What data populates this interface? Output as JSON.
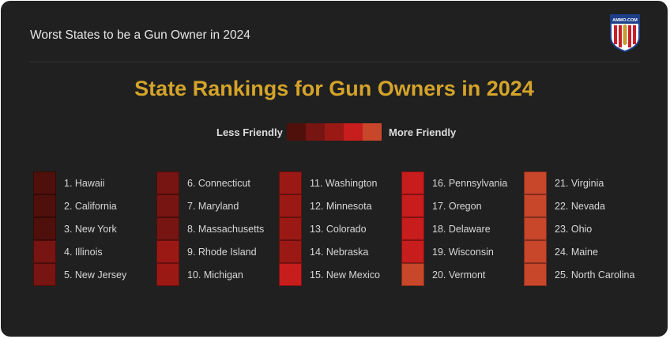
{
  "header": {
    "title": "Worst States to be a Gun Owner in 2024"
  },
  "logo": {
    "icon": "ammo-com-shield-logo",
    "text": "AMMO.COM"
  },
  "chart_data": {
    "type": "table",
    "title": "State Rankings for Gun Owners in 2024",
    "legend": {
      "less_label": "Less Friendly",
      "more_label": "More Friendly",
      "colors": [
        "#4f100b",
        "#761511",
        "#9b1915",
        "#c71d1d",
        "#c8462a"
      ]
    },
    "columns": [
      [
        {
          "rank": 1,
          "label": "1. Hawaii",
          "color": "#4f100b"
        },
        {
          "rank": 2,
          "label": "2. California",
          "color": "#4f100b"
        },
        {
          "rank": 3,
          "label": "3. New York",
          "color": "#4f100b"
        },
        {
          "rank": 4,
          "label": "4. Illinois",
          "color": "#761511"
        },
        {
          "rank": 5,
          "label": "5. New Jersey",
          "color": "#761511"
        }
      ],
      [
        {
          "rank": 6,
          "label": "6. Connecticut",
          "color": "#761511"
        },
        {
          "rank": 7,
          "label": "7. Maryland",
          "color": "#761511"
        },
        {
          "rank": 8,
          "label": "8. Massachusetts",
          "color": "#761511"
        },
        {
          "rank": 9,
          "label": "9. Rhode Island",
          "color": "#9b1915"
        },
        {
          "rank": 10,
          "label": "10. Michigan",
          "color": "#9b1915"
        }
      ],
      [
        {
          "rank": 11,
          "label": "11. Washington",
          "color": "#9b1915"
        },
        {
          "rank": 12,
          "label": "12. Minnesota",
          "color": "#9b1915"
        },
        {
          "rank": 13,
          "label": "13. Colorado",
          "color": "#9b1915"
        },
        {
          "rank": 14,
          "label": "14. Nebraska",
          "color": "#9b1915"
        },
        {
          "rank": 15,
          "label": "15. New Mexico",
          "color": "#c71d1d"
        }
      ],
      [
        {
          "rank": 16,
          "label": "16. Pennsylvania",
          "color": "#c71d1d"
        },
        {
          "rank": 17,
          "label": "17. Oregon",
          "color": "#c71d1d"
        },
        {
          "rank": 18,
          "label": "18. Delaware",
          "color": "#c71d1d"
        },
        {
          "rank": 19,
          "label": "19. Wisconsin",
          "color": "#c71d1d"
        },
        {
          "rank": 20,
          "label": "20. Vermont",
          "color": "#c8462a"
        }
      ],
      [
        {
          "rank": 21,
          "label": "21. Virginia",
          "color": "#c8462a"
        },
        {
          "rank": 22,
          "label": "22. Nevada",
          "color": "#c8462a"
        },
        {
          "rank": 23,
          "label": "23. Ohio",
          "color": "#c8462a"
        },
        {
          "rank": 24,
          "label": "24. Maine",
          "color": "#c8462a"
        },
        {
          "rank": 25,
          "label": "25. North Carolina",
          "color": "#c8462a"
        }
      ]
    ]
  }
}
